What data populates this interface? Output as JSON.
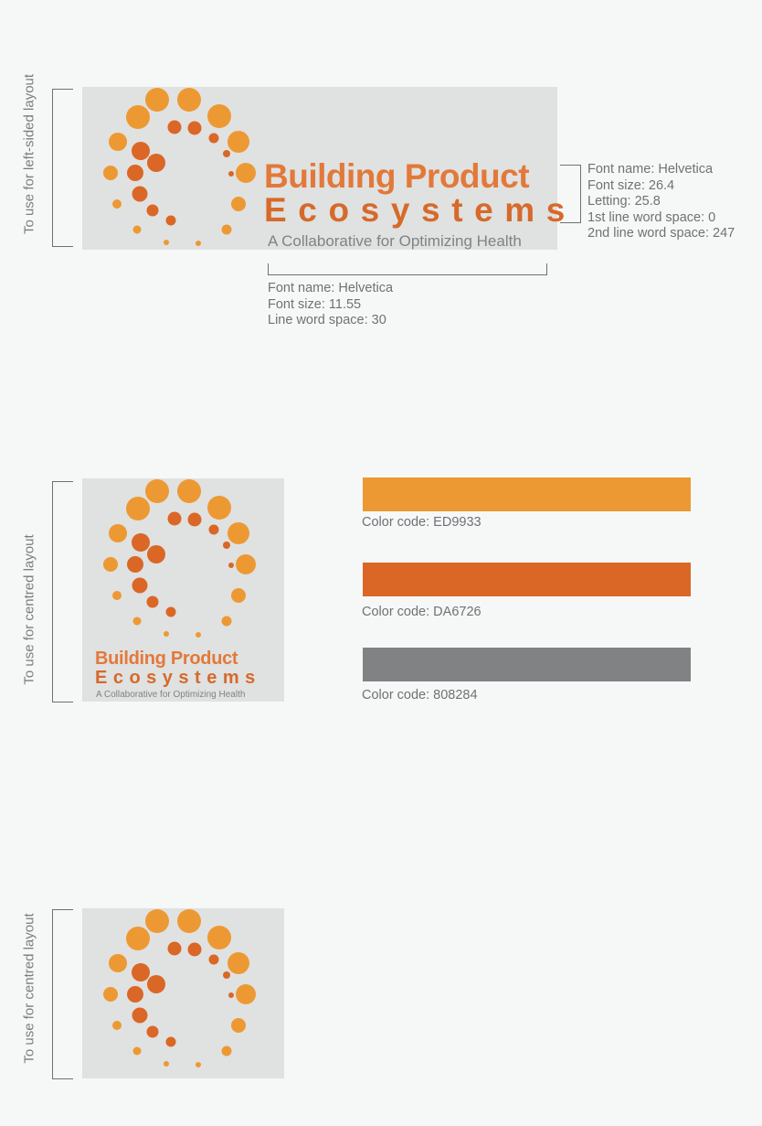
{
  "sections": {
    "left": {
      "label": "To use for left-sided layout"
    },
    "centred": {
      "label": "To use for centred layout"
    },
    "icon_only": {
      "label": "To use for centred layout"
    }
  },
  "logo": {
    "line1": "Building Product",
    "line2": "Ecosystems",
    "tagline": "A Collaborative for Optimizing Health",
    "colors": {
      "orange_light": "#ED9933",
      "orange_dark": "#DA6726",
      "gray": "#808284"
    }
  },
  "headline_spec": {
    "font_name": "Font name: Helvetica",
    "font_size": "Font size: 26.4",
    "letting": "Letting: 25.8",
    "line1_word_space": "1st line word space: 0",
    "line2_word_space": "2nd line word space: 247"
  },
  "tagline_spec": {
    "font_name": "Font name: Helvetica",
    "font_size": "Font size: 11.55",
    "line_word_space": "Line word space: 30"
  },
  "palette": [
    {
      "hex": "#ED9933",
      "label": "Color code: ED9933"
    },
    {
      "hex": "#DA6726",
      "label": "Color code: DA6726"
    },
    {
      "hex": "#808284",
      "label": "Color code: 808284"
    }
  ]
}
